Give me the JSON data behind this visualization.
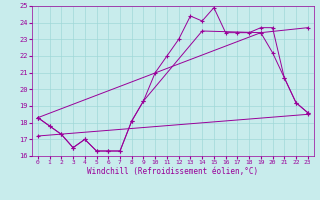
{
  "xlabel": "Windchill (Refroidissement éolien,°C)",
  "background_color": "#c8ecec",
  "grid_color": "#a0d8d8",
  "line_color": "#990099",
  "xlim": [
    -0.5,
    23.5
  ],
  "ylim": [
    16,
    25
  ],
  "xticks": [
    0,
    1,
    2,
    3,
    4,
    5,
    6,
    7,
    8,
    9,
    10,
    11,
    12,
    13,
    14,
    15,
    16,
    17,
    18,
    19,
    20,
    21,
    22,
    23
  ],
  "yticks": [
    16,
    17,
    18,
    19,
    20,
    21,
    22,
    23,
    24,
    25
  ],
  "series1_x": [
    0,
    1,
    2,
    3,
    4,
    5,
    6,
    7,
    8,
    9,
    10,
    11,
    12,
    13,
    14,
    15,
    16,
    17,
    18,
    19,
    20,
    21,
    22,
    23
  ],
  "series1_y": [
    18.3,
    17.8,
    17.3,
    16.5,
    17.0,
    16.3,
    16.3,
    16.3,
    18.1,
    19.3,
    21.0,
    22.0,
    23.0,
    24.4,
    24.1,
    24.9,
    23.4,
    23.4,
    23.4,
    23.7,
    23.7,
    20.7,
    19.2,
    18.6
  ],
  "series2_x": [
    0,
    1,
    2,
    3,
    4,
    5,
    6,
    7,
    8,
    9,
    14,
    19,
    20,
    21,
    22,
    23
  ],
  "series2_y": [
    18.3,
    17.8,
    17.3,
    16.5,
    17.0,
    16.3,
    16.3,
    16.3,
    18.1,
    19.3,
    23.5,
    23.4,
    22.2,
    20.7,
    19.2,
    18.6
  ],
  "series3_x": [
    0,
    23
  ],
  "series3_y": [
    17.2,
    18.5
  ],
  "series4_x": [
    0,
    19,
    23
  ],
  "series4_y": [
    18.3,
    23.4,
    23.7
  ]
}
